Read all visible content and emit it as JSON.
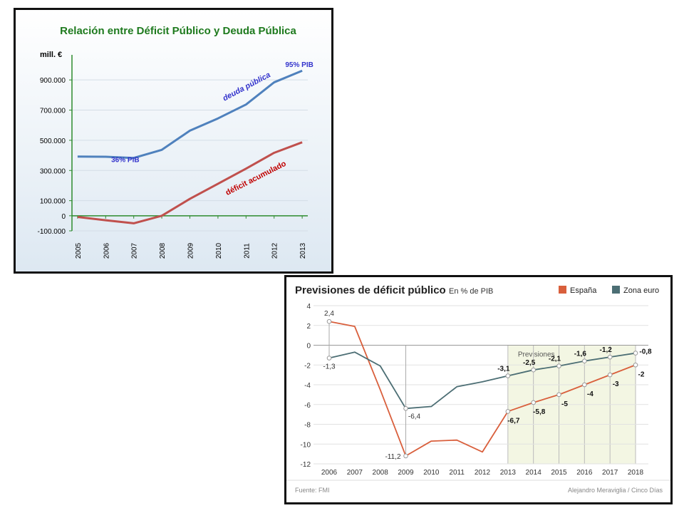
{
  "chart_data": [
    {
      "type": "line",
      "title": "Relación entre Déficit Público y Deuda Pública",
      "ylabel": "mill. €",
      "ylim": [
        -100000,
        1000000
      ],
      "yticks": [
        {
          "value": 900000,
          "label": "900.000"
        },
        {
          "value": 700000,
          "label": "700.000"
        },
        {
          "value": 500000,
          "label": "500.000"
        },
        {
          "value": 300000,
          "label": "300.000"
        },
        {
          "value": 100000,
          "label": "100.000"
        },
        {
          "value": 0,
          "label": "0"
        },
        {
          "value": -100000,
          "label": "-100.000"
        }
      ],
      "x": [
        "2005",
        "2006",
        "2007",
        "2008",
        "2009",
        "2010",
        "2011",
        "2012",
        "2013"
      ],
      "series": [
        {
          "name": "deuda pública",
          "color": "#4f81bd",
          "values": [
            392000,
            391000,
            383000,
            437000,
            564000,
            645000,
            737000,
            884000,
            961000
          ]
        },
        {
          "name": "déficit acumulado",
          "color": "#c0504d",
          "values": [
            -8000,
            -30000,
            -50000,
            0,
            112000,
            212000,
            312000,
            417000,
            487000
          ]
        }
      ],
      "annotations": [
        {
          "text": "95% PIB",
          "x": "2013",
          "y": 985000,
          "color": "#3333cc"
        },
        {
          "text": "36% PIB",
          "x": "2006.5",
          "y": 355000,
          "color": "#3333cc"
        }
      ],
      "colors": {
        "title": "#1e7a1e",
        "axis": "#2e8b2e",
        "annot": "#3333cc",
        "deficit_label": "#c00000"
      }
    },
    {
      "type": "line",
      "title": "Previsiones de déficit público",
      "subtitle": "En % de PIB",
      "legend": [
        {
          "name": "España",
          "color": "#d95f3c"
        },
        {
          "name": "Zona euro",
          "color": "#4c6e74"
        }
      ],
      "legend_position": "top-right",
      "ylim": [
        -12,
        4
      ],
      "yticks": [
        4,
        2,
        0,
        -2,
        -4,
        -6,
        -8,
        -10,
        -12
      ],
      "x": [
        "2006",
        "2007",
        "2008",
        "2009",
        "2010",
        "2011",
        "2012",
        "2013",
        "2014",
        "2015",
        "2016",
        "2017",
        "2018"
      ],
      "series": [
        {
          "name": "España",
          "color": "#d95f3c",
          "values": [
            2.4,
            1.9,
            -4.5,
            -11.2,
            -9.7,
            -9.6,
            -10.8,
            -6.7,
            -5.8,
            -5.0,
            -4.0,
            -3.0,
            -2.0
          ],
          "point_labels": [
            "2,4",
            null,
            null,
            "-11,2",
            null,
            null,
            null,
            "-6,7",
            "-5,8",
            "-5",
            "-4",
            "-3",
            "-2"
          ]
        },
        {
          "name": "Zona euro",
          "color": "#4c6e74",
          "values": [
            -1.3,
            -0.7,
            -2.1,
            -6.4,
            -6.2,
            -4.2,
            -3.7,
            -3.1,
            -2.5,
            -2.1,
            -1.6,
            -1.2,
            -0.8
          ],
          "point_labels": [
            "-1,3",
            null,
            null,
            "-6,4",
            null,
            null,
            null,
            "-3,1",
            "-2,5",
            "-2,1",
            "-1,6",
            "-1,2",
            "-0,8"
          ]
        }
      ],
      "forecast_label": "Previsiones",
      "forecast_from": "2013",
      "source": "Fuente: FMI",
      "credit": "Alejandro Meraviglia / Cinco Días"
    }
  ]
}
